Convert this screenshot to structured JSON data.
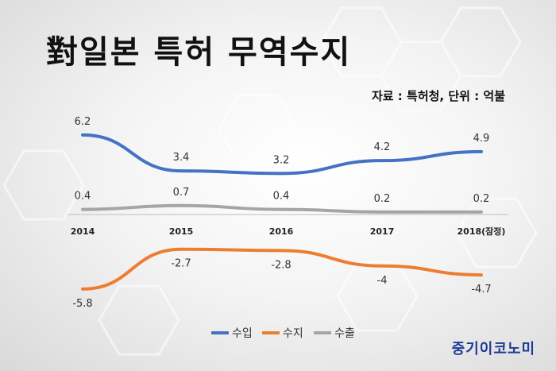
{
  "title": "對일본 특허 무역수지",
  "source": "자료 : 특허청, 단위 : 억불",
  "brand": "중기이코노미",
  "chart_data": {
    "type": "line",
    "categories": [
      "2014",
      "2015",
      "2016",
      "2017",
      "2018(잠정)"
    ],
    "series": [
      {
        "name": "수입",
        "values": [
          6.2,
          3.4,
          3.2,
          4.2,
          4.9
        ],
        "color": "#4472c4"
      },
      {
        "name": "수지",
        "values": [
          -5.8,
          -2.7,
          -2.8,
          -4,
          -4.7
        ],
        "color": "#ed7d31"
      },
      {
        "name": "수출",
        "values": [
          0.4,
          0.7,
          0.4,
          0.2,
          0.2
        ],
        "color": "#a5a5a5"
      }
    ],
    "ylim": [
      -6,
      6.5
    ],
    "legend_position": "bottom",
    "grid": false
  }
}
